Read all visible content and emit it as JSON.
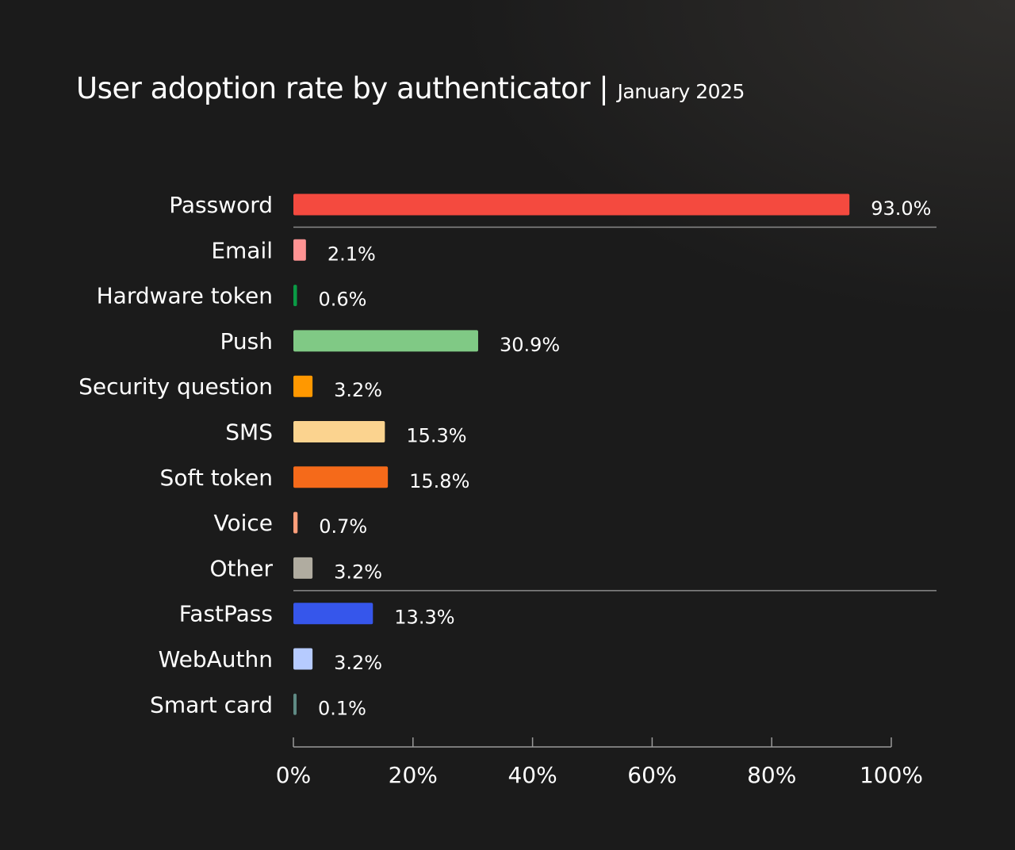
{
  "chart_data": {
    "type": "bar",
    "orientation": "horizontal",
    "title": "User adoption rate by authenticator",
    "subtitle": "January 2025",
    "title_separator": "|",
    "categories": [
      "Password",
      "Email",
      "Hardware token",
      "Push",
      "Security question",
      "SMS",
      "Soft token",
      "Voice",
      "Other",
      "FastPass",
      "WebAuthn",
      "Smart card"
    ],
    "values": [
      93.0,
      2.1,
      0.6,
      30.9,
      3.2,
      15.3,
      15.8,
      0.7,
      3.2,
      13.3,
      3.2,
      0.1
    ],
    "value_labels": [
      "93.0%",
      "2.1%",
      "0.6%",
      "30.9%",
      "3.2%",
      "15.3%",
      "15.8%",
      "0.7%",
      "3.2%",
      "13.3%",
      "3.2%",
      "0.1%"
    ],
    "colors": [
      "#f44a3f",
      "#ff9393",
      "#0a9a45",
      "#80c985",
      "#ff9800",
      "#fbd38f",
      "#f56a1a",
      "#ff9e7a",
      "#b0aca0",
      "#3656eb",
      "#b6cbff",
      "#5f8a84"
    ],
    "group_separators_after": [
      "Password",
      "Other"
    ],
    "xlim": [
      0,
      100
    ],
    "xticks": [
      "0%",
      "20%",
      "40%",
      "60%",
      "80%",
      "100%"
    ],
    "xtick_values": [
      0,
      20,
      40,
      60,
      80,
      100
    ],
    "xlabel": "",
    "ylabel": "",
    "grid": false,
    "background": "#1b1b1b"
  }
}
